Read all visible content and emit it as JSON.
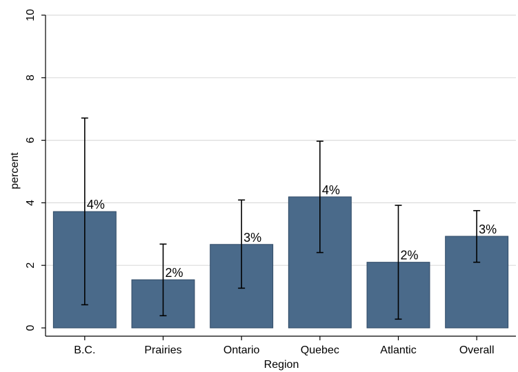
{
  "chart_data": {
    "type": "bar",
    "title": "",
    "xlabel": "Region",
    "ylabel": "percent",
    "ylim": [
      0,
      10
    ],
    "yticks": [
      "0",
      "2",
      "4",
      "6",
      "8",
      "10"
    ],
    "grid": true,
    "categories": [
      "B.C.",
      "Prairies",
      "Ontario",
      "Quebec",
      "Atlantic",
      "Overall"
    ],
    "values": [
      3.72,
      1.54,
      2.67,
      4.19,
      2.1,
      2.93
    ],
    "ci_low": [
      0.74,
      0.39,
      1.27,
      2.41,
      0.28,
      2.1
    ],
    "ci_high": [
      6.71,
      2.68,
      4.09,
      5.97,
      3.92,
      3.75
    ],
    "data_labels": [
      "4%",
      "2%",
      "3%",
      "4%",
      "2%",
      "3%"
    ],
    "colors": {
      "bar": "#4a6a8a",
      "bar_edge": "#2f4a66",
      "grid": "#dcdcdc",
      "error_bar": "#000000"
    }
  }
}
